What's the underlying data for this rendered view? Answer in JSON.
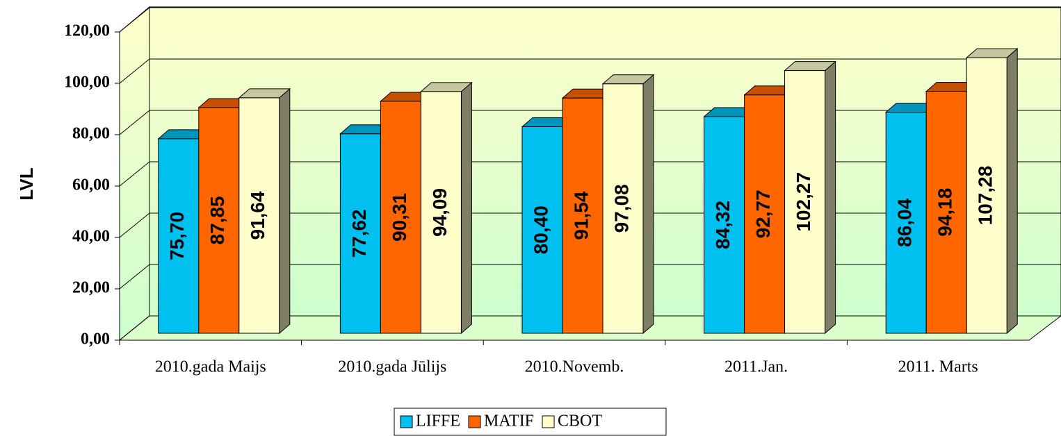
{
  "chart_data": {
    "type": "bar3d",
    "y_label": "LVL",
    "categories": [
      "2010.gada Maijs",
      "2010.gada Jūlijs",
      "2010.Novemb.",
      "2011.Jan.",
      "2011. Marts"
    ],
    "series": [
      {
        "name": "LIFFE",
        "color": "#00c0f0",
        "values": [
          75.7,
          77.62,
          80.4,
          84.32,
          86.04
        ],
        "value_labels": [
          "75,70",
          "77,62",
          "80,40",
          "84,32",
          "86,04"
        ]
      },
      {
        "name": "MATIF",
        "color": "#ff6600",
        "values": [
          87.85,
          90.31,
          91.54,
          92.77,
          94.18
        ],
        "value_labels": [
          "87,85",
          "90,31",
          "91,54",
          "92,77",
          "94,18"
        ]
      },
      {
        "name": "CBOT",
        "color": "#ffffcc",
        "values": [
          91.64,
          94.09,
          97.08,
          102.27,
          107.28
        ],
        "value_labels": [
          "91,64",
          "94,09",
          "97,08",
          "102,27",
          "107,28"
        ]
      }
    ],
    "ylim": [
      0,
      120
    ],
    "yticks": [
      {
        "value": 0,
        "label": "0,00"
      },
      {
        "value": 20,
        "label": "20,00"
      },
      {
        "value": 40,
        "label": "40,00"
      },
      {
        "value": 60,
        "label": "60,00"
      },
      {
        "value": 80,
        "label": "80,00"
      },
      {
        "value": 100,
        "label": "100,00"
      },
      {
        "value": 120,
        "label": "120,00"
      }
    ],
    "grid": true,
    "legend": "bottom"
  }
}
